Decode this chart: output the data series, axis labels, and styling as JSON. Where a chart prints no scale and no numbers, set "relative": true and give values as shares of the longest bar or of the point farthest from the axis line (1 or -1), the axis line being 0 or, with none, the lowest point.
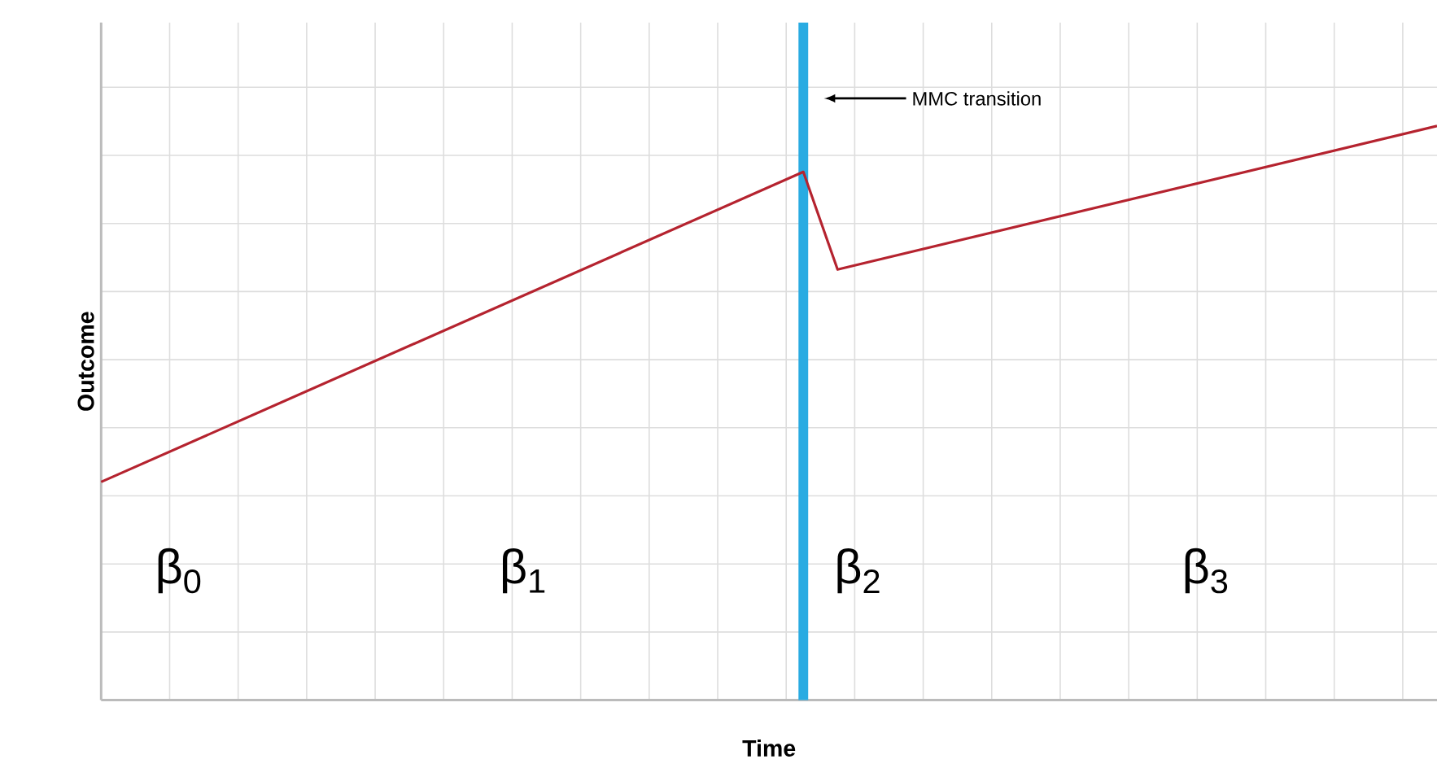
{
  "chart_data": {
    "type": "line",
    "xlabel": "Time",
    "ylabel": "Outcome",
    "relative": true,
    "grid": true,
    "tick_labels": false,
    "marker": "none",
    "line_style": "solid",
    "categories": [
      null,
      null,
      null,
      null,
      null,
      null,
      null,
      null,
      null,
      null,
      null,
      null,
      null,
      null,
      null,
      null,
      null,
      null,
      null,
      null,
      null,
      null,
      null,
      null,
      null,
      null,
      null,
      null,
      null,
      null,
      null,
      null,
      null,
      null,
      null,
      null,
      null,
      null,
      null,
      null,
      null,
      null,
      null,
      null,
      null,
      null,
      null,
      null,
      null,
      null,
      null,
      null,
      null,
      null,
      null,
      null,
      null,
      null,
      null,
      null,
      null,
      null,
      null,
      null,
      null,
      null,
      null,
      null,
      null,
      null,
      null,
      null,
      null,
      null,
      null,
      null,
      null,
      null,
      null
    ],
    "series": [
      {
        "color": "#b5232f",
        "values": [
          0.38,
          null,
          null,
          null,
          null,
          null,
          null,
          null,
          null,
          null,
          null,
          null,
          null,
          null,
          null,
          null,
          null,
          null,
          null,
          null,
          null,
          null,
          null,
          null,
          null,
          null,
          null,
          null,
          null,
          null,
          null,
          null,
          null,
          null,
          null,
          null,
          null,
          null,
          null,
          null,
          null,
          0.92,
          null,
          0.75,
          null,
          null,
          null,
          null,
          null,
          null,
          null,
          null,
          null,
          null,
          null,
          null,
          null,
          null,
          null,
          null,
          null,
          null,
          null,
          null,
          null,
          null,
          null,
          null,
          null,
          null,
          null,
          null,
          null,
          null,
          null,
          null,
          null,
          null,
          1
        ]
      }
    ],
    "annotations": [
      "MMC transition",
      "β$_{0}$",
      "β$_{1}$",
      "β$_{2}$",
      "β$_{3}$"
    ]
  }
}
